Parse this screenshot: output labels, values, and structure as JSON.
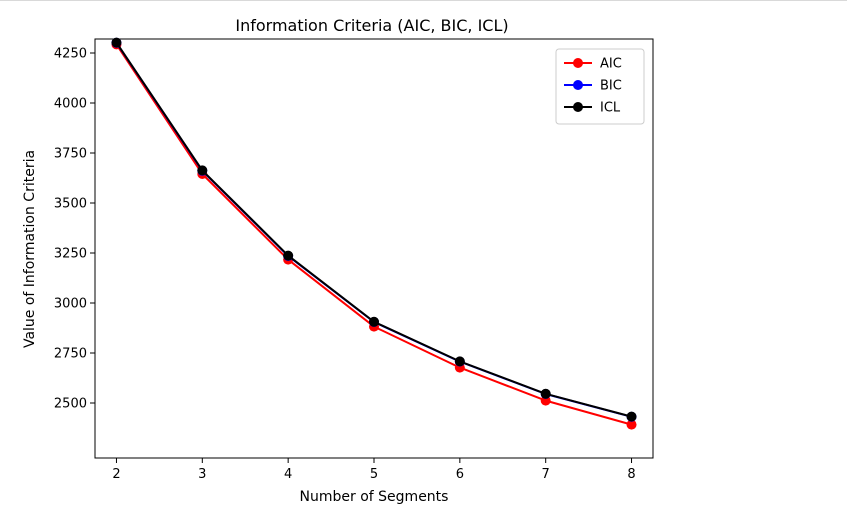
{
  "chart_data": {
    "type": "line",
    "title": "Information Criteria (AIC, BIC, ICL)",
    "xlabel": "Number of Segments",
    "ylabel": "Value of Information Criteria",
    "x": [
      2,
      3,
      4,
      5,
      6,
      7,
      8
    ],
    "xlim": [
      1.75,
      8.25
    ],
    "ylim": [
      2225,
      4320
    ],
    "xticks": [
      "2",
      "3",
      "4",
      "5",
      "6",
      "7",
      "8"
    ],
    "yticks": [
      "2500",
      "2750",
      "3000",
      "3250",
      "3500",
      "3750",
      "4000",
      "4250"
    ],
    "grid": false,
    "legend_position": "top-right",
    "series": [
      {
        "name": "AIC",
        "color": "#ff0000",
        "values": [
          4293,
          3645,
          3217,
          2882,
          2677,
          2512,
          2392
        ]
      },
      {
        "name": "BIC",
        "color": "#0000ff",
        "values": [
          4301,
          3661,
          3235,
          2905,
          2707,
          2545,
          2431
        ]
      },
      {
        "name": "ICL",
        "color": "#000000",
        "values": [
          4302,
          3663,
          3237,
          2906,
          2708,
          2546,
          2432
        ]
      }
    ]
  }
}
